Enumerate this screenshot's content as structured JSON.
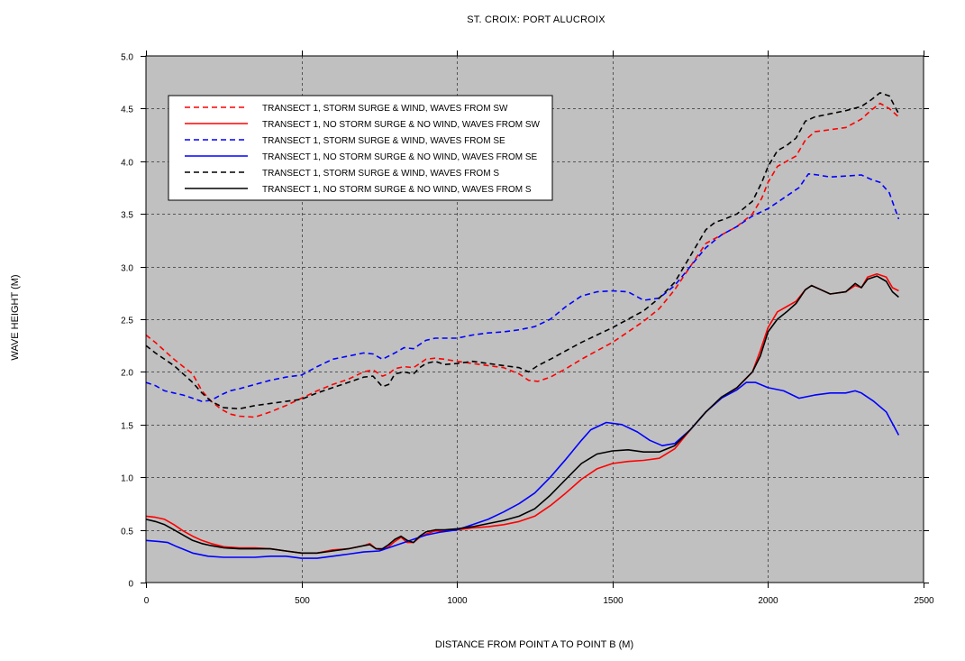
{
  "chart_data": {
    "type": "line",
    "title": "ST. CROIX: PORT ALUCROIX",
    "xlabel": "DISTANCE FROM POINT A TO POINT B (M)",
    "ylabel": "WAVE HEIGHT (M)",
    "xlim": [
      0,
      2500
    ],
    "ylim": [
      0,
      5
    ],
    "xticks": [
      0,
      500,
      1000,
      1500,
      2000,
      2500
    ],
    "xtick_labels": [
      "0",
      "500",
      "1000",
      "1500",
      "2000",
      "2500"
    ],
    "yticks": [
      0,
      0.5,
      1,
      1.5,
      2,
      2.5,
      3,
      3.5,
      4,
      4.5,
      5
    ],
    "ytick_labels": [
      "0",
      "0.5",
      "1.0",
      "1.5",
      "2.0",
      "2.5",
      "3.0",
      "3.5",
      "4.0",
      "4.5",
      "5.0"
    ],
    "grid": true,
    "legend_position": "top-left",
    "colors": {
      "plot_bg": "#c0c0c0",
      "red": "#ff0000",
      "blue": "#0000ff",
      "black": "#000000"
    },
    "series": [
      {
        "name": "TRANSECT 1, STORM SURGE & WIND, WAVES FROM SW",
        "color": "#ff0000",
        "dashed": true,
        "x": [
          0,
          30,
          60,
          90,
          120,
          150,
          180,
          210,
          240,
          270,
          300,
          350,
          400,
          450,
          500,
          550,
          600,
          650,
          700,
          730,
          760,
          780,
          800,
          830,
          860,
          880,
          900,
          930,
          960,
          1000,
          1050,
          1100,
          1150,
          1200,
          1230,
          1260,
          1300,
          1350,
          1400,
          1450,
          1500,
          1550,
          1600,
          1650,
          1700,
          1750,
          1800,
          1850,
          1900,
          1950,
          1980,
          2000,
          2030,
          2060,
          2090,
          2120,
          2150,
          2200,
          2250,
          2300,
          2330,
          2360,
          2390,
          2420
        ],
        "y": [
          2.35,
          2.28,
          2.2,
          2.12,
          2.05,
          1.98,
          1.82,
          1.72,
          1.65,
          1.6,
          1.58,
          1.57,
          1.62,
          1.68,
          1.75,
          1.82,
          1.88,
          1.93,
          2.0,
          2.02,
          1.96,
          1.98,
          2.03,
          2.05,
          2.04,
          2.08,
          2.12,
          2.13,
          2.12,
          2.1,
          2.08,
          2.06,
          2.04,
          1.98,
          1.92,
          1.91,
          1.95,
          2.03,
          2.12,
          2.2,
          2.28,
          2.38,
          2.48,
          2.6,
          2.78,
          3.0,
          3.22,
          3.3,
          3.38,
          3.5,
          3.65,
          3.8,
          3.95,
          4.0,
          4.05,
          4.2,
          4.28,
          4.3,
          4.32,
          4.4,
          4.48,
          4.55,
          4.5,
          4.42
        ]
      },
      {
        "name": "TRANSECT 1, NO STORM SURGE & NO WIND, WAVES FROM SW",
        "color": "#ff0000",
        "dashed": false,
        "x": [
          0,
          30,
          60,
          90,
          120,
          150,
          180,
          210,
          250,
          300,
          350,
          400,
          450,
          500,
          550,
          600,
          650,
          700,
          720,
          740,
          760,
          780,
          800,
          820,
          840,
          860,
          880,
          900,
          930,
          960,
          1000,
          1050,
          1100,
          1150,
          1200,
          1250,
          1300,
          1350,
          1400,
          1450,
          1500,
          1550,
          1600,
          1650,
          1700,
          1750,
          1800,
          1850,
          1900,
          1950,
          1975,
          2000,
          2030,
          2060,
          2090,
          2120,
          2140,
          2170,
          2200,
          2250,
          2280,
          2300,
          2320,
          2350,
          2380,
          2400,
          2420
        ],
        "y": [
          0.63,
          0.62,
          0.6,
          0.55,
          0.49,
          0.44,
          0.4,
          0.37,
          0.34,
          0.33,
          0.33,
          0.32,
          0.3,
          0.28,
          0.28,
          0.31,
          0.32,
          0.35,
          0.37,
          0.32,
          0.31,
          0.34,
          0.39,
          0.43,
          0.38,
          0.38,
          0.43,
          0.46,
          0.49,
          0.49,
          0.5,
          0.52,
          0.53,
          0.55,
          0.58,
          0.63,
          0.73,
          0.85,
          0.98,
          1.08,
          1.13,
          1.15,
          1.16,
          1.18,
          1.27,
          1.45,
          1.62,
          1.75,
          1.85,
          2.0,
          2.2,
          2.42,
          2.57,
          2.62,
          2.67,
          2.78,
          2.82,
          2.78,
          2.74,
          2.76,
          2.82,
          2.8,
          2.9,
          2.93,
          2.9,
          2.8,
          2.77
        ]
      },
      {
        "name": "TRANSECT 1, STORM SURGE & WIND, WAVES FROM SE",
        "color": "#0000ff",
        "dashed": true,
        "x": [
          0,
          30,
          60,
          90,
          120,
          150,
          180,
          210,
          240,
          270,
          300,
          350,
          400,
          450,
          500,
          550,
          600,
          650,
          700,
          730,
          760,
          800,
          830,
          860,
          880,
          900,
          930,
          1000,
          1050,
          1100,
          1150,
          1200,
          1250,
          1300,
          1350,
          1400,
          1450,
          1500,
          1550,
          1600,
          1650,
          1700,
          1750,
          1800,
          1850,
          1900,
          1950,
          2000,
          2050,
          2100,
          2130,
          2160,
          2200,
          2250,
          2300,
          2330,
          2360,
          2390,
          2420
        ],
        "y": [
          1.9,
          1.87,
          1.82,
          1.8,
          1.78,
          1.75,
          1.72,
          1.73,
          1.78,
          1.82,
          1.84,
          1.88,
          1.92,
          1.95,
          1.97,
          2.05,
          2.12,
          2.15,
          2.18,
          2.17,
          2.12,
          2.18,
          2.23,
          2.22,
          2.26,
          2.3,
          2.32,
          2.32,
          2.35,
          2.37,
          2.38,
          2.4,
          2.43,
          2.5,
          2.62,
          2.72,
          2.76,
          2.77,
          2.76,
          2.68,
          2.7,
          2.82,
          3.0,
          3.18,
          3.3,
          3.38,
          3.48,
          3.55,
          3.65,
          3.75,
          3.88,
          3.87,
          3.85,
          3.86,
          3.87,
          3.83,
          3.8,
          3.7,
          3.45
        ]
      },
      {
        "name": "TRANSECT 1, NO STORM SURGE & NO WIND, WAVES FROM SE",
        "color": "#0000ff",
        "dashed": false,
        "x": [
          0,
          40,
          70,
          100,
          150,
          200,
          250,
          300,
          350,
          400,
          450,
          500,
          550,
          600,
          650,
          700,
          750,
          800,
          850,
          900,
          950,
          1000,
          1050,
          1100,
          1150,
          1200,
          1250,
          1300,
          1350,
          1400,
          1430,
          1480,
          1530,
          1580,
          1620,
          1660,
          1700,
          1750,
          1800,
          1850,
          1900,
          1930,
          1960,
          2000,
          2050,
          2100,
          2150,
          2200,
          2250,
          2280,
          2300,
          2340,
          2380,
          2420
        ],
        "y": [
          0.4,
          0.39,
          0.38,
          0.34,
          0.28,
          0.25,
          0.24,
          0.24,
          0.24,
          0.25,
          0.25,
          0.23,
          0.23,
          0.25,
          0.27,
          0.29,
          0.3,
          0.35,
          0.4,
          0.45,
          0.48,
          0.5,
          0.55,
          0.6,
          0.67,
          0.75,
          0.85,
          1.0,
          1.17,
          1.35,
          1.45,
          1.52,
          1.5,
          1.43,
          1.35,
          1.3,
          1.32,
          1.45,
          1.62,
          1.75,
          1.83,
          1.9,
          1.9,
          1.85,
          1.82,
          1.75,
          1.78,
          1.8,
          1.8,
          1.82,
          1.8,
          1.72,
          1.62,
          1.4
        ]
      },
      {
        "name": "TRANSECT 1, STORM SURGE & WIND, WAVES FROM S",
        "color": "#000000",
        "dashed": true,
        "x": [
          0,
          30,
          60,
          90,
          120,
          150,
          180,
          210,
          250,
          300,
          350,
          400,
          450,
          500,
          550,
          600,
          650,
          700,
          730,
          760,
          780,
          800,
          830,
          860,
          880,
          900,
          930,
          960,
          1000,
          1050,
          1100,
          1150,
          1200,
          1230,
          1260,
          1300,
          1350,
          1400,
          1450,
          1500,
          1550,
          1600,
          1650,
          1700,
          1750,
          1800,
          1830,
          1860,
          1900,
          1950,
          1980,
          2000,
          2030,
          2060,
          2090,
          2120,
          2150,
          2200,
          2250,
          2300,
          2330,
          2360,
          2390,
          2420
        ],
        "y": [
          2.25,
          2.18,
          2.12,
          2.06,
          1.98,
          1.9,
          1.8,
          1.72,
          1.66,
          1.65,
          1.68,
          1.7,
          1.72,
          1.74,
          1.8,
          1.85,
          1.9,
          1.95,
          1.96,
          1.86,
          1.88,
          1.98,
          2.0,
          1.98,
          2.04,
          2.08,
          2.1,
          2.07,
          2.08,
          2.1,
          2.08,
          2.06,
          2.04,
          2.0,
          2.06,
          2.12,
          2.2,
          2.28,
          2.35,
          2.42,
          2.5,
          2.58,
          2.7,
          2.85,
          3.1,
          3.35,
          3.42,
          3.45,
          3.5,
          3.62,
          3.8,
          3.95,
          4.1,
          4.15,
          4.22,
          4.38,
          4.42,
          4.45,
          4.48,
          4.52,
          4.58,
          4.65,
          4.62,
          4.45
        ]
      },
      {
        "name": "TRANSECT 1, NO STORM SURGE & NO WIND, WAVES FROM S",
        "color": "#000000",
        "dashed": false,
        "x": [
          0,
          30,
          60,
          90,
          120,
          150,
          180,
          210,
          250,
          300,
          350,
          400,
          450,
          500,
          550,
          600,
          650,
          700,
          720,
          740,
          760,
          780,
          800,
          820,
          840,
          860,
          880,
          900,
          930,
          960,
          1000,
          1050,
          1100,
          1150,
          1200,
          1250,
          1300,
          1350,
          1400,
          1450,
          1500,
          1550,
          1600,
          1650,
          1700,
          1750,
          1800,
          1850,
          1900,
          1950,
          1975,
          2000,
          2030,
          2060,
          2090,
          2120,
          2140,
          2170,
          2200,
          2250,
          2280,
          2300,
          2320,
          2350,
          2380,
          2400,
          2420
        ],
        "y": [
          0.6,
          0.58,
          0.55,
          0.5,
          0.45,
          0.4,
          0.37,
          0.35,
          0.33,
          0.32,
          0.32,
          0.32,
          0.3,
          0.28,
          0.28,
          0.3,
          0.32,
          0.35,
          0.36,
          0.32,
          0.32,
          0.36,
          0.41,
          0.44,
          0.4,
          0.38,
          0.44,
          0.48,
          0.5,
          0.5,
          0.51,
          0.53,
          0.56,
          0.59,
          0.63,
          0.7,
          0.83,
          0.98,
          1.13,
          1.22,
          1.25,
          1.26,
          1.24,
          1.24,
          1.3,
          1.45,
          1.62,
          1.76,
          1.85,
          2.0,
          2.15,
          2.38,
          2.5,
          2.57,
          2.65,
          2.78,
          2.82,
          2.78,
          2.74,
          2.76,
          2.84,
          2.8,
          2.88,
          2.91,
          2.86,
          2.76,
          2.71
        ]
      }
    ]
  }
}
